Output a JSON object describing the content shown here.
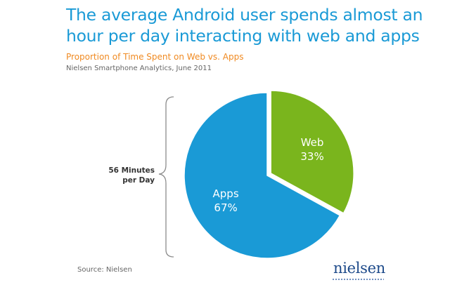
{
  "headline": {
    "line1": "The average Android user spends almost an",
    "line2": "hour per day interacting with web and apps"
  },
  "subtitle": "Proportion of Time Spent on Web vs. Apps",
  "source_line": "Nielsen Smartphone Analytics, June 2011",
  "brace_label": {
    "line1": "56 Minutes",
    "line2": "per Day"
  },
  "footer_source": "Source: Nielsen",
  "logo_text": "nielsen",
  "chart_data": {
    "type": "pie",
    "title": "Proportion of Time Spent on Web vs. Apps",
    "categories": [
      "Web",
      "Apps"
    ],
    "values": [
      33,
      67
    ],
    "labels": [
      "33%",
      "67%"
    ],
    "colors": [
      "#7ab51d",
      "#1a9ad6"
    ],
    "start": "12 o'clock",
    "direction": "clockwise",
    "legend": "none"
  }
}
